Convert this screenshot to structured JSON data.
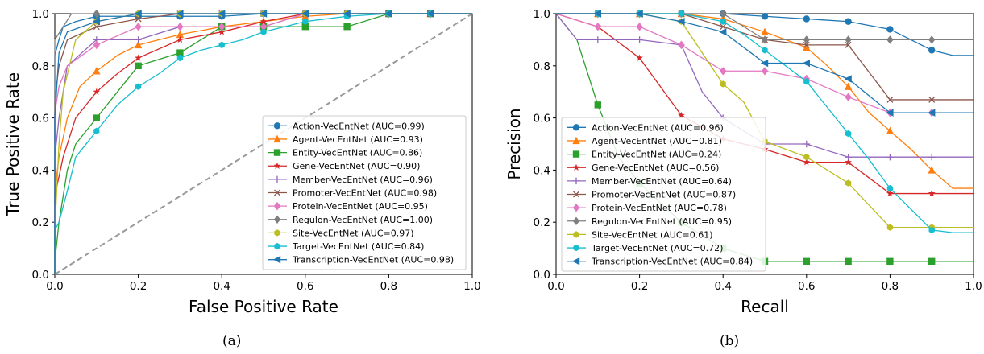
{
  "captions": {
    "a": "(a)",
    "b": "(b)"
  },
  "chart_data": [
    {
      "type": "line",
      "xlabel": "False Positive Rate",
      "ylabel": "True Positive Rate",
      "xlim": [
        0,
        1
      ],
      "ylim": [
        0,
        1
      ],
      "xticks": [
        "0.0",
        "0.2",
        "0.4",
        "0.6",
        "0.8",
        "1.0"
      ],
      "yticks": [
        "0.0",
        "0.2",
        "0.4",
        "0.6",
        "0.8",
        "1.0"
      ],
      "legend_position": "lower-right",
      "diagonal": true,
      "series": [
        {
          "name": "Action-VecEntNet (AUC=0.99)",
          "color": "#1f77b4",
          "marker": "circle",
          "x": [
            0,
            0,
            0.01,
            0.02,
            0.05,
            0.1,
            0.2,
            0.3,
            0.4,
            0.5,
            0.6,
            0.7,
            0.8,
            0.9,
            1.0
          ],
          "y": [
            0,
            0.84,
            0.9,
            0.95,
            0.97,
            0.99,
            0.99,
            0.99,
            0.99,
            1.0,
            1.0,
            1.0,
            1.0,
            1.0,
            1.0
          ]
        },
        {
          "name": "Agent-VecEntNet (AUC=0.93)",
          "color": "#ff7f0e",
          "marker": "triangle",
          "x": [
            0,
            0,
            0.01,
            0.03,
            0.06,
            0.1,
            0.15,
            0.2,
            0.3,
            0.4,
            0.5,
            0.6,
            0.7,
            0.8,
            0.9,
            1.0
          ],
          "y": [
            0,
            0.32,
            0.45,
            0.6,
            0.72,
            0.78,
            0.84,
            0.88,
            0.92,
            0.95,
            0.97,
            0.99,
            1.0,
            1.0,
            1.0,
            1.0
          ]
        },
        {
          "name": "Entity-VecEntNet (AUC=0.86)",
          "color": "#2ca02c",
          "marker": "square",
          "x": [
            0,
            0,
            0.01,
            0.03,
            0.05,
            0.1,
            0.15,
            0.2,
            0.3,
            0.4,
            0.5,
            0.6,
            0.7,
            0.8,
            0.9,
            1.0
          ],
          "y": [
            0,
            0.05,
            0.2,
            0.4,
            0.5,
            0.6,
            0.7,
            0.8,
            0.85,
            0.95,
            0.95,
            0.95,
            0.95,
            1.0,
            1.0,
            1.0
          ]
        },
        {
          "name": "Gene-VecEntNet (AUC=0.90)",
          "color": "#d62728",
          "marker": "star",
          "x": [
            0,
            0,
            0.02,
            0.05,
            0.1,
            0.15,
            0.2,
            0.3,
            0.4,
            0.5,
            0.6,
            0.7,
            0.8,
            0.9,
            1.0
          ],
          "y": [
            0,
            0.3,
            0.45,
            0.6,
            0.7,
            0.77,
            0.83,
            0.9,
            0.93,
            0.97,
            1.0,
            1.0,
            1.0,
            1.0,
            1.0
          ]
        },
        {
          "name": "Member-VecEntNet (AUC=0.96)",
          "color": "#9467bd",
          "marker": "plus",
          "x": [
            0,
            0,
            0.01,
            0.03,
            0.1,
            0.2,
            0.3,
            0.4,
            0.5,
            0.6,
            0.7,
            0.8,
            0.9,
            1.0
          ],
          "y": [
            0,
            0.45,
            0.6,
            0.8,
            0.9,
            0.9,
            0.95,
            0.95,
            0.95,
            1.0,
            1.0,
            1.0,
            1.0,
            1.0
          ]
        },
        {
          "name": "Promoter-VecEntNet (AUC=0.98)",
          "color": "#8c564b",
          "marker": "x",
          "x": [
            0,
            0,
            0.01,
            0.03,
            0.1,
            0.2,
            0.3,
            0.4,
            0.5,
            0.6,
            0.7,
            0.8,
            0.9,
            1.0
          ],
          "y": [
            0,
            0.67,
            0.8,
            0.9,
            0.95,
            0.98,
            1.0,
            1.0,
            1.0,
            1.0,
            1.0,
            1.0,
            1.0,
            1.0
          ]
        },
        {
          "name": "Protein-VecEntNet (AUC=0.95)",
          "color": "#e377c2",
          "marker": "diamond",
          "x": [
            0,
            0,
            0.01,
            0.03,
            0.1,
            0.2,
            0.3,
            0.4,
            0.5,
            0.6,
            0.7,
            0.8,
            0.9,
            1.0
          ],
          "y": [
            0,
            0.62,
            0.72,
            0.8,
            0.88,
            0.95,
            0.95,
            0.95,
            0.95,
            1.0,
            1.0,
            1.0,
            1.0,
            1.0
          ]
        },
        {
          "name": "Regulon-VecEntNet (AUC=1.00)",
          "color": "#7f7f7f",
          "marker": "diamond",
          "x": [
            0,
            0,
            0.02,
            0.04,
            0.1,
            0.2,
            0.3,
            0.4,
            0.5,
            0.6,
            0.7,
            0.8,
            0.9,
            1.0
          ],
          "y": [
            0,
            0.9,
            0.95,
            1.0,
            1.0,
            1.0,
            1.0,
            1.0,
            1.0,
            1.0,
            1.0,
            1.0,
            1.0,
            1.0
          ]
        },
        {
          "name": "Site-VecEntNet (AUC=0.97)",
          "color": "#bcbd22",
          "marker": "hexagon",
          "x": [
            0,
            0,
            0.01,
            0.02,
            0.05,
            0.1,
            0.2,
            0.3,
            0.4,
            0.5,
            0.6,
            0.7,
            0.8,
            0.9,
            1.0
          ],
          "y": [
            0,
            0.17,
            0.5,
            0.7,
            0.9,
            0.97,
            1.0,
            1.0,
            1.0,
            1.0,
            1.0,
            1.0,
            1.0,
            1.0,
            1.0
          ]
        },
        {
          "name": "Target-VecEntNet (AUC=0.84)",
          "color": "#17becf",
          "marker": "hexagon",
          "x": [
            0,
            0,
            0.01,
            0.03,
            0.05,
            0.1,
            0.15,
            0.2,
            0.25,
            0.3,
            0.35,
            0.4,
            0.45,
            0.5,
            0.55,
            0.6,
            0.7,
            0.8,
            0.9,
            1.0
          ],
          "y": [
            0,
            0.17,
            0.2,
            0.32,
            0.45,
            0.55,
            0.65,
            0.72,
            0.77,
            0.83,
            0.86,
            0.88,
            0.9,
            0.93,
            0.95,
            0.97,
            0.99,
            1.0,
            1.0,
            1.0
          ]
        },
        {
          "name": "Transcription-VecEntNet (AUC=0.98)",
          "color": "#1f77b4",
          "marker": "triangle-left",
          "x": [
            0,
            0,
            0.01,
            0.03,
            0.1,
            0.2,
            0.3,
            0.4,
            0.5,
            0.6,
            0.7,
            0.8,
            0.9,
            1.0
          ],
          "y": [
            0,
            0.6,
            0.85,
            0.93,
            0.97,
            1.0,
            1.0,
            1.0,
            1.0,
            1.0,
            1.0,
            1.0,
            1.0,
            1.0
          ]
        }
      ]
    },
    {
      "type": "line",
      "xlabel": "Recall",
      "ylabel": "Precision",
      "xlim": [
        0,
        1
      ],
      "ylim": [
        0,
        1
      ],
      "xticks": [
        "0.0",
        "0.2",
        "0.4",
        "0.6",
        "0.8",
        "1.0"
      ],
      "yticks": [
        "0.0",
        "0.2",
        "0.4",
        "0.6",
        "0.8",
        "1.0"
      ],
      "legend_position": "lower-left",
      "series": [
        {
          "name": "Action-VecEntNet (AUC=0.96)",
          "color": "#1f77b4",
          "marker": "circle",
          "x": [
            0,
            0.1,
            0.2,
            0.3,
            0.4,
            0.5,
            0.6,
            0.7,
            0.8,
            0.9,
            0.95,
            1.0
          ],
          "y": [
            1.0,
            1.0,
            1.0,
            1.0,
            1.0,
            0.99,
            0.98,
            0.97,
            0.94,
            0.86,
            0.84,
            0.84
          ]
        },
        {
          "name": "Agent-VecEntNet (AUC=0.81)",
          "color": "#ff7f0e",
          "marker": "triangle",
          "x": [
            0,
            0.1,
            0.2,
            0.3,
            0.4,
            0.5,
            0.55,
            0.6,
            0.65,
            0.7,
            0.75,
            0.8,
            0.85,
            0.9,
            0.95,
            1.0
          ],
          "y": [
            1.0,
            1.0,
            1.0,
            1.0,
            0.98,
            0.93,
            0.9,
            0.87,
            0.8,
            0.72,
            0.62,
            0.55,
            0.48,
            0.4,
            0.33,
            0.33
          ]
        },
        {
          "name": "Entity-VecEntNet (AUC=0.24)",
          "color": "#2ca02c",
          "marker": "square",
          "x": [
            0,
            0.05,
            0.1,
            0.15,
            0.2,
            0.3,
            0.4,
            0.5,
            0.6,
            0.7,
            0.8,
            0.9,
            1.0
          ],
          "y": [
            1.0,
            0.9,
            0.65,
            0.45,
            0.35,
            0.2,
            0.1,
            0.05,
            0.05,
            0.05,
            0.05,
            0.05,
            0.05
          ]
        },
        {
          "name": "Gene-VecEntNet (AUC=0.56)",
          "color": "#d62728",
          "marker": "star",
          "x": [
            0,
            0.1,
            0.2,
            0.25,
            0.3,
            0.4,
            0.5,
            0.6,
            0.7,
            0.8,
            0.9,
            1.0
          ],
          "y": [
            1.0,
            0.95,
            0.83,
            0.72,
            0.61,
            0.52,
            0.48,
            0.43,
            0.43,
            0.31,
            0.31,
            0.31
          ]
        },
        {
          "name": "Member-VecEntNet (AUC=0.64)",
          "color": "#9467bd",
          "marker": "plus",
          "x": [
            0,
            0.05,
            0.1,
            0.2,
            0.3,
            0.35,
            0.4,
            0.5,
            0.6,
            0.7,
            0.8,
            0.9,
            1.0
          ],
          "y": [
            1.0,
            0.9,
            0.9,
            0.9,
            0.88,
            0.7,
            0.6,
            0.5,
            0.5,
            0.45,
            0.45,
            0.45,
            0.45
          ]
        },
        {
          "name": "Promoter-VecEntNet (AUC=0.87)",
          "color": "#8c564b",
          "marker": "x",
          "x": [
            0,
            0.1,
            0.2,
            0.3,
            0.4,
            0.5,
            0.6,
            0.7,
            0.8,
            0.9,
            1.0
          ],
          "y": [
            1.0,
            1.0,
            1.0,
            1.0,
            0.95,
            0.9,
            0.88,
            0.88,
            0.67,
            0.67,
            0.67
          ]
        },
        {
          "name": "Protein-VecEntNet (AUC=0.78)",
          "color": "#e377c2",
          "marker": "diamond",
          "x": [
            0,
            0.1,
            0.2,
            0.3,
            0.4,
            0.5,
            0.6,
            0.7,
            0.8,
            0.9,
            1.0
          ],
          "y": [
            1.0,
            0.95,
            0.95,
            0.88,
            0.78,
            0.78,
            0.75,
            0.68,
            0.62,
            0.62,
            0.62
          ]
        },
        {
          "name": "Regulon-VecEntNet (AUC=0.95)",
          "color": "#7f7f7f",
          "marker": "diamond",
          "x": [
            0,
            0.1,
            0.2,
            0.3,
            0.4,
            0.5,
            0.6,
            0.7,
            0.8,
            0.9,
            1.0
          ],
          "y": [
            1.0,
            1.0,
            1.0,
            1.0,
            1.0,
            0.9,
            0.9,
            0.9,
            0.9,
            0.9,
            0.9
          ]
        },
        {
          "name": "Site-VecEntNet (AUC=0.61)",
          "color": "#bcbd22",
          "marker": "hexagon",
          "x": [
            0,
            0.1,
            0.2,
            0.3,
            0.35,
            0.4,
            0.45,
            0.5,
            0.6,
            0.7,
            0.8,
            0.9,
            1.0
          ],
          "y": [
            1.0,
            1.0,
            1.0,
            0.97,
            0.85,
            0.73,
            0.66,
            0.51,
            0.45,
            0.35,
            0.18,
            0.18,
            0.18
          ]
        },
        {
          "name": "Target-VecEntNet (AUC=0.72)",
          "color": "#17becf",
          "marker": "hexagon",
          "x": [
            0,
            0.1,
            0.2,
            0.3,
            0.4,
            0.45,
            0.5,
            0.55,
            0.6,
            0.65,
            0.7,
            0.75,
            0.8,
            0.85,
            0.9,
            0.95,
            1.0
          ],
          "y": [
            1.0,
            1.0,
            1.0,
            1.0,
            0.97,
            0.92,
            0.86,
            0.8,
            0.74,
            0.64,
            0.54,
            0.44,
            0.33,
            0.25,
            0.17,
            0.16,
            0.16
          ]
        },
        {
          "name": "Transcription-VecEntNet (AUC=0.84)",
          "color": "#1f77b4",
          "marker": "triangle-left",
          "x": [
            0,
            0.1,
            0.2,
            0.3,
            0.4,
            0.5,
            0.6,
            0.7,
            0.8,
            0.9,
            1.0
          ],
          "y": [
            1.0,
            1.0,
            1.0,
            0.97,
            0.93,
            0.81,
            0.81,
            0.75,
            0.62,
            0.62,
            0.62
          ]
        }
      ]
    }
  ]
}
